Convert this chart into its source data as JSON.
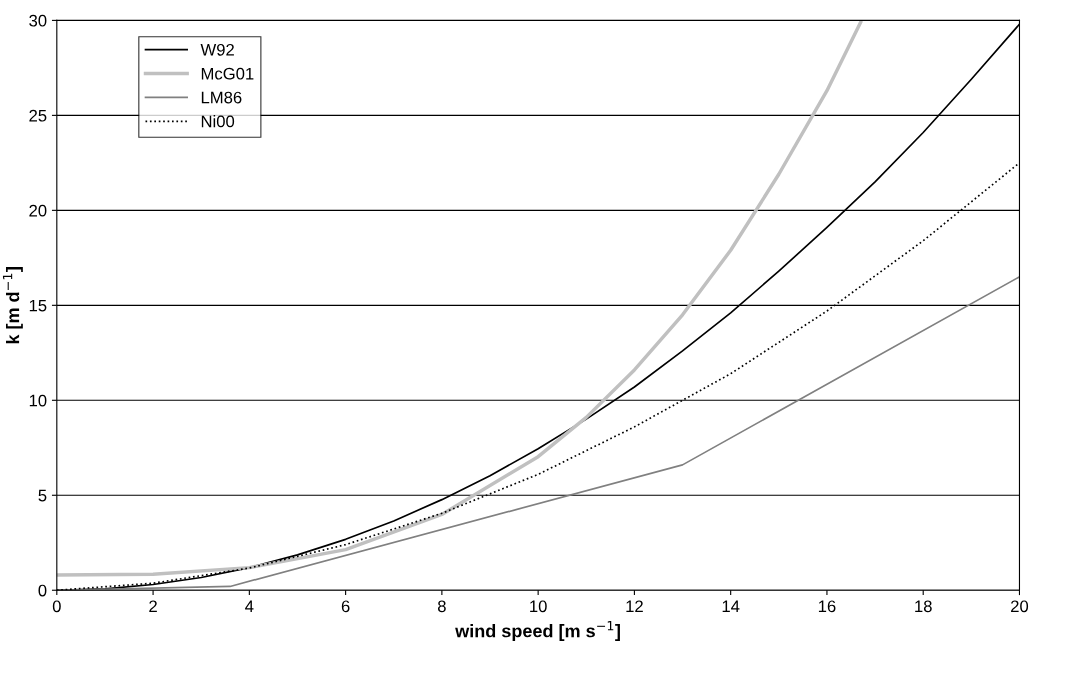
{
  "chart_data": {
    "type": "line",
    "xlabel": "wind speed [m s$^{−1}$]",
    "ylabel": "k [m d$^{−1}$]",
    "xlim": [
      0,
      20
    ],
    "ylim": [
      0,
      30
    ],
    "xticks": [
      0,
      2,
      4,
      6,
      8,
      10,
      12,
      14,
      16,
      18,
      20
    ],
    "yticks": [
      0,
      5,
      10,
      15,
      20,
      25,
      30
    ],
    "grid": "y",
    "legend": "top left",
    "marker": "none",
    "series": [
      {
        "name": "W92",
        "color": "#000000",
        "line_style": "solid",
        "x": [
          0,
          1,
          2,
          3,
          4,
          5,
          6,
          7,
          8,
          9,
          10,
          11,
          12,
          13,
          14,
          15,
          16,
          17,
          18,
          19,
          20
        ],
        "values": [
          0,
          0.07,
          0.3,
          0.67,
          1.19,
          1.86,
          2.68,
          3.65,
          4.77,
          6.03,
          7.45,
          9.01,
          10.7,
          12.6,
          14.6,
          16.8,
          19.1,
          21.5,
          24.1,
          26.9,
          29.8
        ]
      },
      {
        "name": "McG01",
        "color": "#c0c0c0",
        "line_style": "solid",
        "x": [
          0,
          2,
          4,
          6,
          8,
          10,
          11,
          12,
          13,
          14,
          15,
          16,
          16.7
        ],
        "values": [
          0.8,
          0.84,
          1.19,
          2.14,
          3.99,
          7.03,
          9.1,
          11.6,
          14.5,
          17.9,
          21.9,
          26.3,
          29.9
        ]
      },
      {
        "name": "LM86",
        "color": "#808080",
        "line_style": "solid",
        "x": [
          0,
          3.6,
          13,
          20
        ],
        "values": [
          0,
          0.2,
          6.6,
          16.5
        ]
      },
      {
        "name": "Ni00",
        "color": "#000000",
        "line_style": "dotted",
        "x": [
          0,
          2,
          4,
          6,
          8,
          10,
          12,
          14,
          16,
          18,
          20
        ],
        "values": [
          0,
          0.37,
          1.17,
          2.4,
          4.05,
          6.1,
          8.6,
          11.4,
          14.7,
          18.4,
          22.5
        ]
      }
    ]
  }
}
